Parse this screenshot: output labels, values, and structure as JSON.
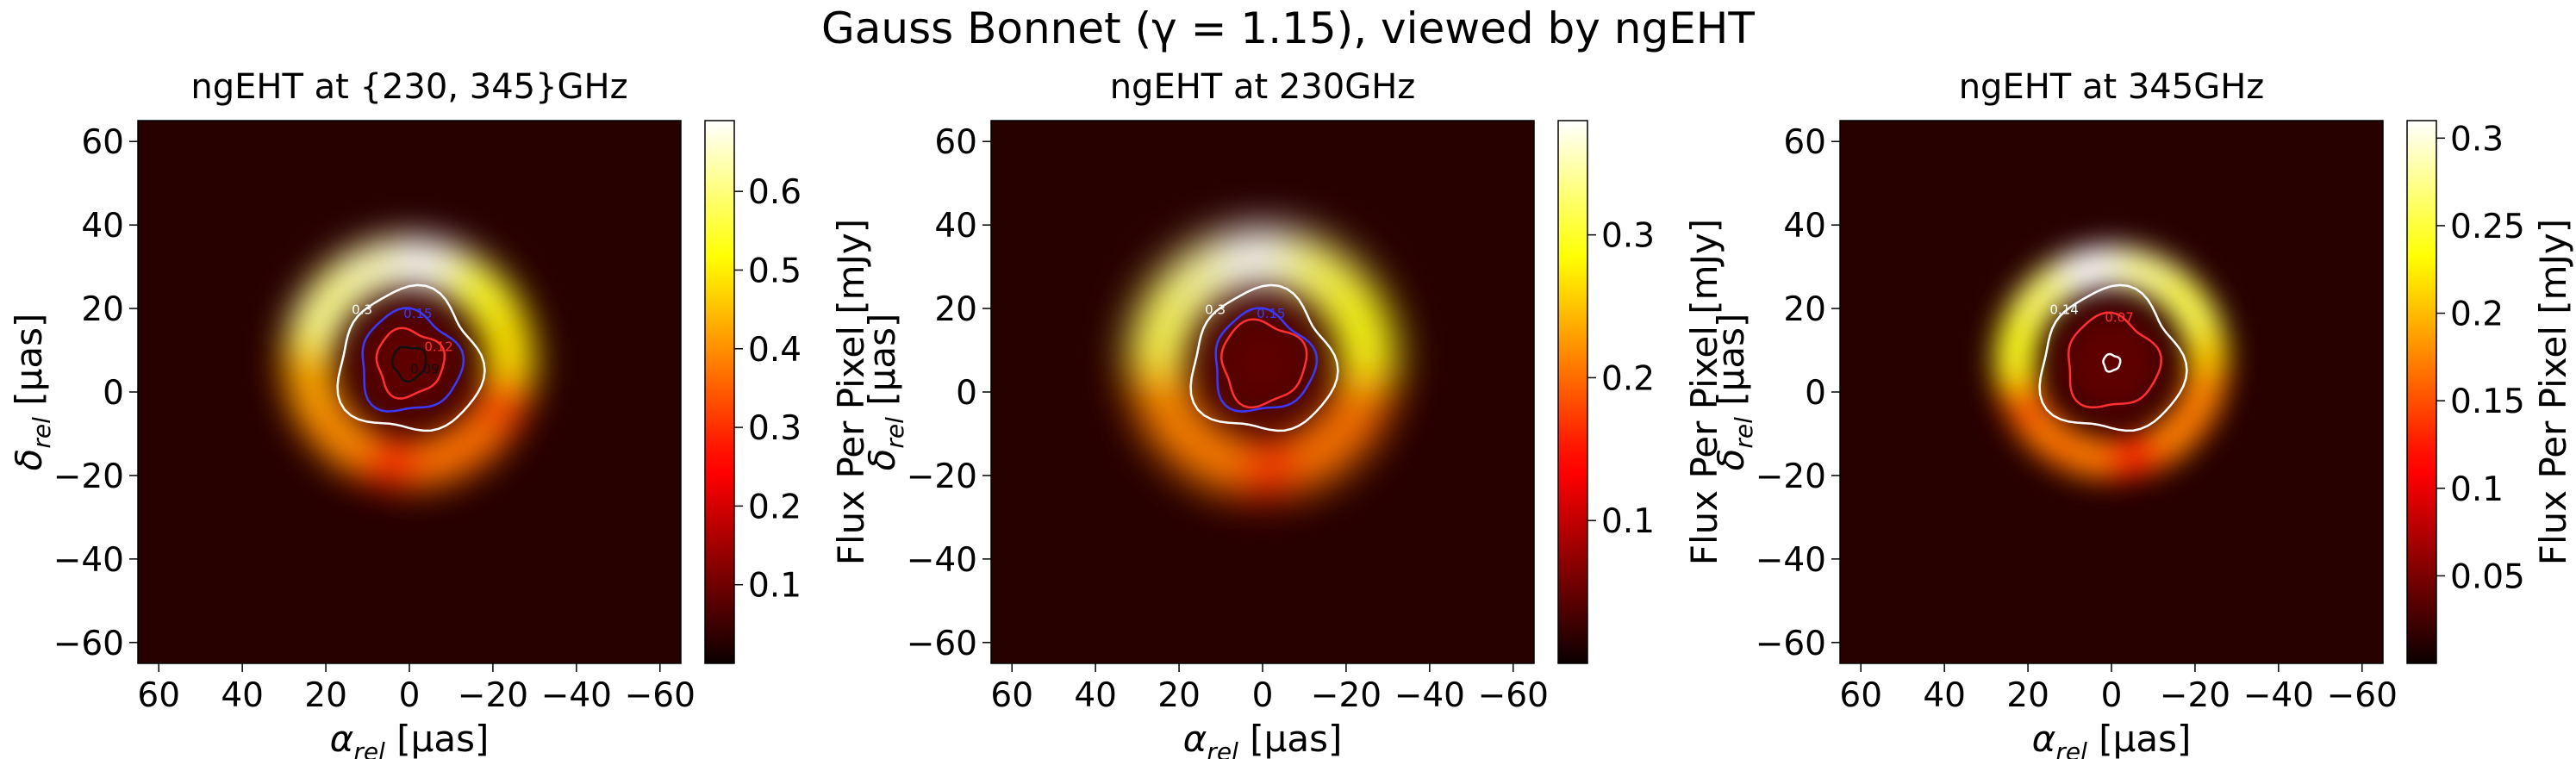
{
  "suptitle": "Gauss Bonnet (γ = 1.15), viewed by ngEHT",
  "chart_data": [
    {
      "type": "heatmap",
      "title": "ngEHT at {230, 345}GHz",
      "xlabel": "α_rel [μas]",
      "ylabel": "δ_rel [μas]",
      "xlim": [
        65,
        -65
      ],
      "ylim": [
        -65,
        65
      ],
      "xticks": [
        60,
        40,
        20,
        0,
        -20,
        -40,
        -60
      ],
      "yticks": [
        60,
        40,
        20,
        0,
        -20,
        -40,
        -60
      ],
      "colormap": "hot",
      "colorbar_label": "Flux Per Pixel [mJy]",
      "colorbar_range": [
        0.0,
        0.69
      ],
      "colorbar_ticks": [
        0.1,
        0.2,
        0.3,
        0.4,
        0.5,
        0.6
      ],
      "ring": {
        "center_x": 0,
        "center_y": 7,
        "radius": 24,
        "width": 11,
        "peak_flux": 0.69,
        "peak_direction": "bottom"
      },
      "contours": [
        {
          "level": "0.3",
          "color": "#ffffff",
          "radius": 17
        },
        {
          "level": "0.15",
          "color": "#3a3aff",
          "radius": 12
        },
        {
          "level": "0.12",
          "color": "#ff3030",
          "radius": 8
        },
        {
          "level": "0.09",
          "color": "#111111",
          "radius": 4
        }
      ]
    },
    {
      "type": "heatmap",
      "title": "ngEHT at 230GHz",
      "xlabel": "α_rel [μas]",
      "ylabel": "δ_rel [μas]",
      "xlim": [
        65,
        -65
      ],
      "ylim": [
        -65,
        65
      ],
      "xticks": [
        60,
        40,
        20,
        0,
        -20,
        -40,
        -60
      ],
      "yticks": [
        60,
        40,
        20,
        0,
        -20,
        -40,
        -60
      ],
      "colormap": "hot",
      "colorbar_label": "Flux Per Pixel [mJy]",
      "colorbar_range": [
        0.0,
        0.38
      ],
      "colorbar_ticks": [
        0.1,
        0.2,
        0.3
      ],
      "ring": {
        "center_x": 0,
        "center_y": 7,
        "radius": 25,
        "width": 13,
        "peak_flux": 0.38,
        "peak_direction": "bottom"
      },
      "contours": [
        {
          "level": "0.3",
          "color": "#ffffff",
          "radius": 17
        },
        {
          "level": "0.15",
          "color": "#3a3aff",
          "radius": 12
        },
        {
          "level": "",
          "color": "#ff3030",
          "radius": 10
        }
      ]
    },
    {
      "type": "heatmap",
      "title": "ngEHT at 345GHz",
      "xlabel": "α_rel [μas]",
      "ylabel": "δ_rel [μas]",
      "xlim": [
        65,
        -65
      ],
      "ylim": [
        -65,
        65
      ],
      "xticks": [
        60,
        40,
        20,
        0,
        -20,
        -40,
        -60
      ],
      "yticks": [
        60,
        40,
        20,
        0,
        -20,
        -40,
        -60
      ],
      "colormap": "hot",
      "colorbar_label": "Flux Per Pixel [mJy]",
      "colorbar_range": [
        0.0,
        0.31
      ],
      "colorbar_ticks": [
        0.05,
        0.1,
        0.15,
        0.2,
        0.25,
        0.3
      ],
      "ring": {
        "center_x": 0,
        "center_y": 7,
        "radius": 23,
        "width": 9,
        "peak_flux": 0.31,
        "peak_direction": "bottom"
      },
      "contours": [
        {
          "level": "0.14",
          "color": "#ffffff",
          "radius": 17
        },
        {
          "level": "0.07",
          "color": "#ff3030",
          "radius": 11
        },
        {
          "level": "",
          "color": "#ffffff",
          "radius": 2
        }
      ]
    }
  ]
}
